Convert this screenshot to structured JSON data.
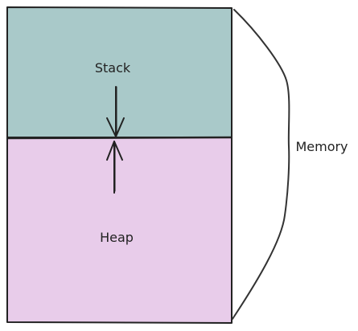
{
  "diagram": {
    "stack_label": "Stack",
    "heap_label": "Heap",
    "memory_label": "Memory"
  },
  "colors": {
    "stack_fill": "#a9c9c9",
    "heap_fill": "#e8ccea",
    "stroke": "#222222",
    "background": "#ffffff"
  }
}
